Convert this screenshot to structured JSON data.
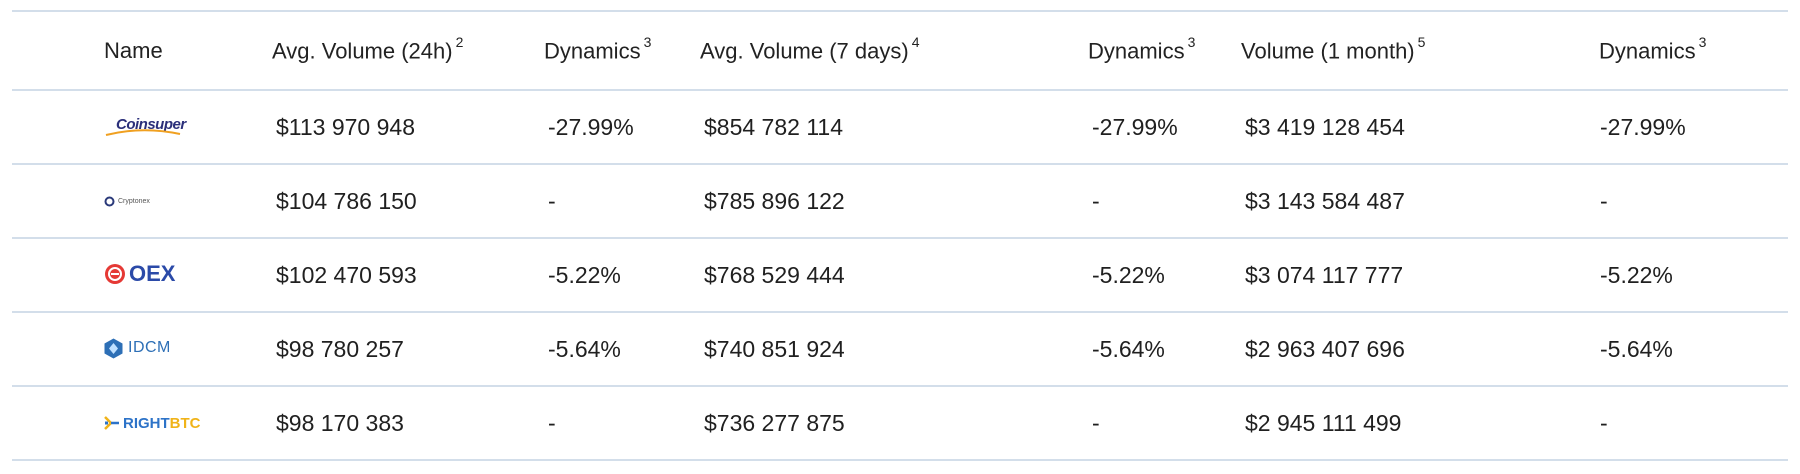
{
  "table": {
    "headers": {
      "name": "Name",
      "avg_volume_24h": "Avg. Volume (24h)",
      "avg_volume_24h_note": "2",
      "dynamics_1": "Dynamics",
      "dynamics_1_note": "3",
      "avg_volume_7d": "Avg. Volume (7 days)",
      "avg_volume_7d_note": "4",
      "dynamics_2": "Dynamics",
      "dynamics_2_note": "3",
      "volume_1m": "Volume (1 month)",
      "volume_1m_note": "5",
      "dynamics_3": "Dynamics",
      "dynamics_3_note": "3"
    },
    "rows": [
      {
        "exchange": "Coinsuper",
        "logo_text": "Coinsuper",
        "avg_volume_24h": "$113 970 948",
        "dynamics_24h": "-27.99%",
        "avg_volume_7d": "$854 782 114",
        "dynamics_7d": "-27.99%",
        "volume_1m": "$3 419 128 454",
        "dynamics_1m": "-27.99%"
      },
      {
        "exchange": "Cryptonex",
        "logo_text": "Cryptonex",
        "avg_volume_24h": "$104 786 150",
        "dynamics_24h": "-",
        "avg_volume_7d": "$785 896 122",
        "dynamics_7d": "-",
        "volume_1m": "$3 143 584 487",
        "dynamics_1m": "-"
      },
      {
        "exchange": "OEX",
        "logo_text": "OEX",
        "avg_volume_24h": "$102 470 593",
        "dynamics_24h": "-5.22%",
        "avg_volume_7d": "$768 529 444",
        "dynamics_7d": "-5.22%",
        "volume_1m": "$3 074 117 777",
        "dynamics_1m": "-5.22%"
      },
      {
        "exchange": "IDCM",
        "logo_text": "IDCM",
        "avg_volume_24h": "$98 780 257",
        "dynamics_24h": "-5.64%",
        "avg_volume_7d": "$740 851 924",
        "dynamics_7d": "-5.64%",
        "volume_1m": "$2 963 407 696",
        "dynamics_1m": "-5.64%"
      },
      {
        "exchange": "RightBTC",
        "logo_text_right": "RIGHT",
        "logo_text_btc": "BTC",
        "avg_volume_24h": "$98 170 383",
        "dynamics_24h": "-",
        "avg_volume_7d": "$736 277 875",
        "dynamics_7d": "-",
        "volume_1m": "$2 945 111 499",
        "dynamics_1m": "-"
      }
    ]
  },
  "colors": {
    "divider": "#d3deea",
    "coinsuper_text": "#2b2f7a",
    "coinsuper_swoosh": "#f0a020",
    "oex_red": "#e53935",
    "oex_blue": "#2b4aa8",
    "idcm_blue": "#2d6fb6",
    "rightbtc_blue": "#2d73c8",
    "rightbtc_yellow": "#f0b319"
  }
}
